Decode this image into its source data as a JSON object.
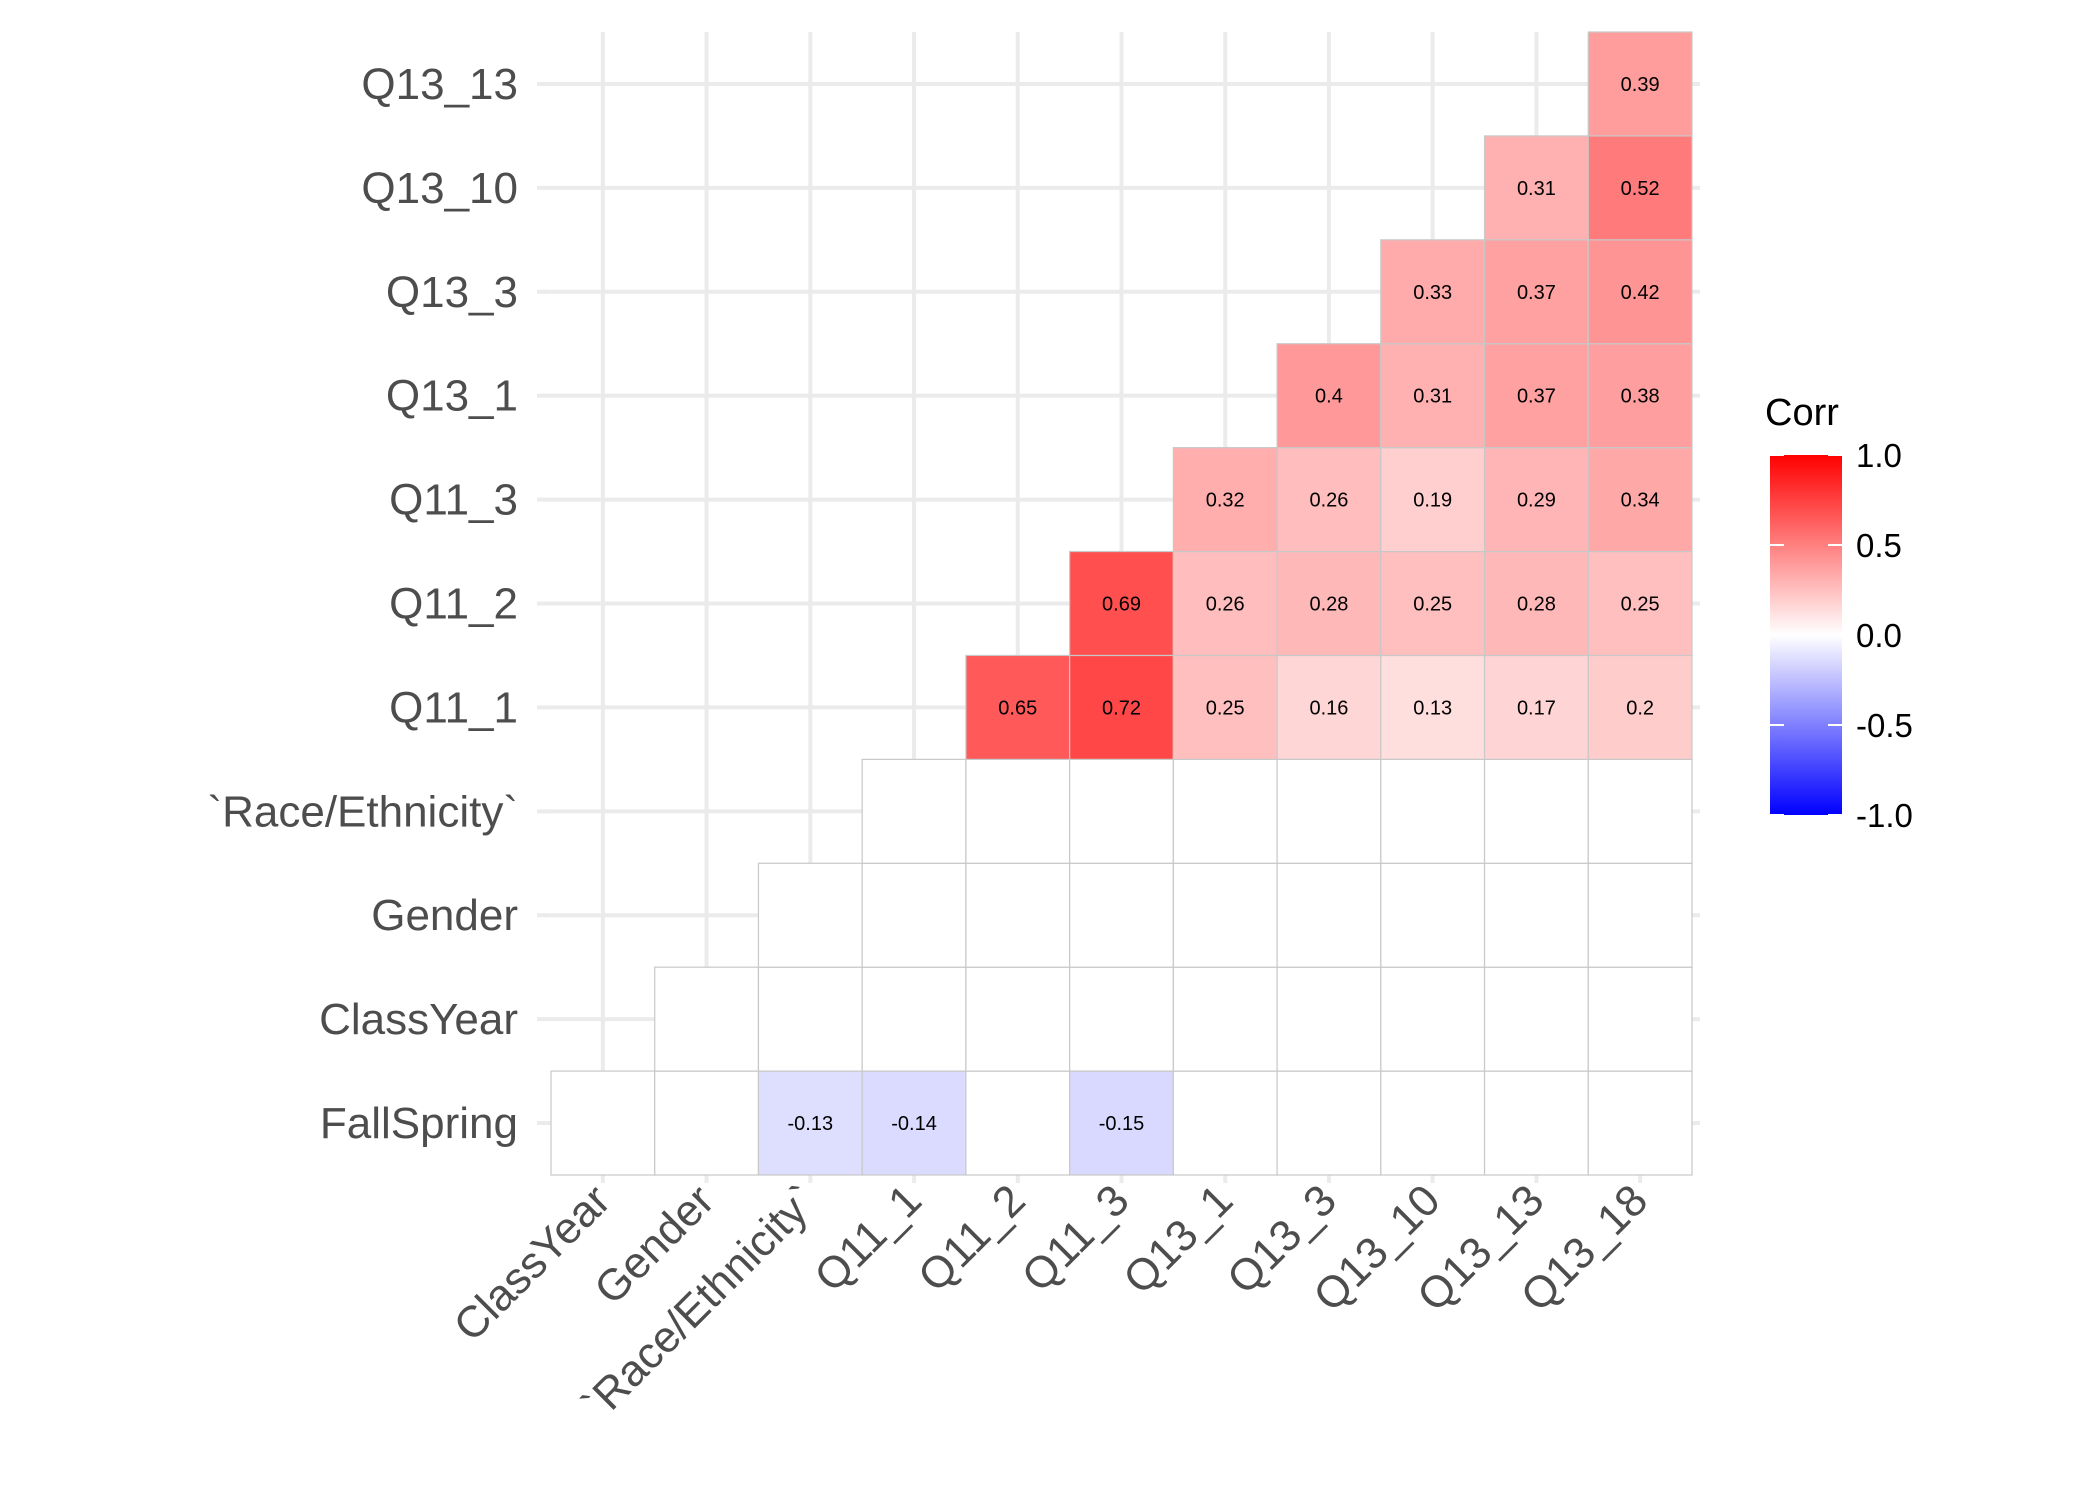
{
  "chart_data": {
    "type": "heatmap",
    "x_labels": [
      "ClassYear",
      "Gender",
      "`Race/Ethnicity`",
      "Q11_1",
      "Q11_2",
      "Q11_3",
      "Q13_1",
      "Q13_3",
      "Q13_10",
      "Q13_13",
      "Q13_18"
    ],
    "y_labels": [
      "FallSpring",
      "ClassYear",
      "Gender",
      "`Race/Ethnicity`",
      "Q11_1",
      "Q11_2",
      "Q11_3",
      "Q13_1",
      "Q13_3",
      "Q13_10",
      "Q13_13"
    ],
    "rows": [
      {
        "y": "FallSpring",
        "values": [
          0,
          0,
          -0.13,
          -0.14,
          0,
          -0.15,
          0,
          0,
          0,
          0,
          0
        ],
        "labels": [
          "",
          "",
          "-0.13",
          "-0.14",
          "",
          "-0.15",
          "",
          "",
          "",
          "",
          ""
        ]
      },
      {
        "y": "ClassYear",
        "values": [
          null,
          0,
          0,
          0,
          0,
          0,
          0,
          0,
          0,
          0,
          0
        ],
        "labels": [
          "",
          "",
          "",
          "",
          "",
          "",
          "",
          "",
          "",
          "",
          ""
        ]
      },
      {
        "y": "Gender",
        "values": [
          null,
          null,
          0,
          0,
          0,
          0,
          0,
          0,
          0,
          0,
          0
        ],
        "labels": [
          "",
          "",
          "",
          "",
          "",
          "",
          "",
          "",
          "",
          "",
          ""
        ]
      },
      {
        "y": "`Race/Ethnicity`",
        "values": [
          null,
          null,
          null,
          0,
          0,
          0,
          0,
          0,
          0,
          0,
          0
        ],
        "labels": [
          "",
          "",
          "",
          "",
          "",
          "",
          "",
          "",
          "",
          "",
          ""
        ]
      },
      {
        "y": "Q11_1",
        "values": [
          null,
          null,
          null,
          null,
          0.65,
          0.72,
          0.25,
          0.16,
          0.13,
          0.17,
          0.2
        ],
        "labels": [
          "",
          "",
          "",
          "",
          "0.65",
          "0.72",
          "0.25",
          "0.16",
          "0.13",
          "0.17",
          "0.2"
        ]
      },
      {
        "y": "Q11_2",
        "values": [
          null,
          null,
          null,
          null,
          null,
          0.69,
          0.26,
          0.28,
          0.25,
          0.28,
          0.25
        ],
        "labels": [
          "",
          "",
          "",
          "",
          "",
          "0.69",
          "0.26",
          "0.28",
          "0.25",
          "0.28",
          "0.25"
        ]
      },
      {
        "y": "Q11_3",
        "values": [
          null,
          null,
          null,
          null,
          null,
          null,
          0.32,
          0.26,
          0.19,
          0.29,
          0.34
        ],
        "labels": [
          "",
          "",
          "",
          "",
          "",
          "",
          "0.32",
          "0.26",
          "0.19",
          "0.29",
          "0.34"
        ]
      },
      {
        "y": "Q13_1",
        "values": [
          null,
          null,
          null,
          null,
          null,
          null,
          null,
          0.4,
          0.31,
          0.37,
          0.38
        ],
        "labels": [
          "",
          "",
          "",
          "",
          "",
          "",
          "",
          "0.4",
          "0.31",
          "0.37",
          "0.38"
        ]
      },
      {
        "y": "Q13_3",
        "values": [
          null,
          null,
          null,
          null,
          null,
          null,
          null,
          null,
          0.33,
          0.37,
          0.42
        ],
        "labels": [
          "",
          "",
          "",
          "",
          "",
          "",
          "",
          "",
          "0.33",
          "0.37",
          "0.42"
        ]
      },
      {
        "y": "Q13_10",
        "values": [
          null,
          null,
          null,
          null,
          null,
          null,
          null,
          null,
          null,
          0.31,
          0.52
        ],
        "labels": [
          "",
          "",
          "",
          "",
          "",
          "",
          "",
          "",
          "",
          "0.31",
          "0.52"
        ]
      },
      {
        "y": "Q13_13",
        "values": [
          null,
          null,
          null,
          null,
          null,
          null,
          null,
          null,
          null,
          null,
          0.39
        ],
        "labels": [
          "",
          "",
          "",
          "",
          "",
          "",
          "",
          "",
          "",
          "",
          "0.39"
        ]
      }
    ],
    "color_scale": {
      "low": "#0000ff",
      "mid": "#ffffff",
      "high": "#ff0000",
      "limits": [
        -1,
        1
      ]
    },
    "legend": {
      "title": "Corr",
      "position": "right",
      "ticks": [
        1.0,
        0.5,
        0.0,
        -0.5,
        -1.0
      ],
      "tick_labels": [
        "1.0",
        "0.5",
        "0.0",
        "-0.5",
        "-1.0"
      ]
    },
    "grid": true
  }
}
